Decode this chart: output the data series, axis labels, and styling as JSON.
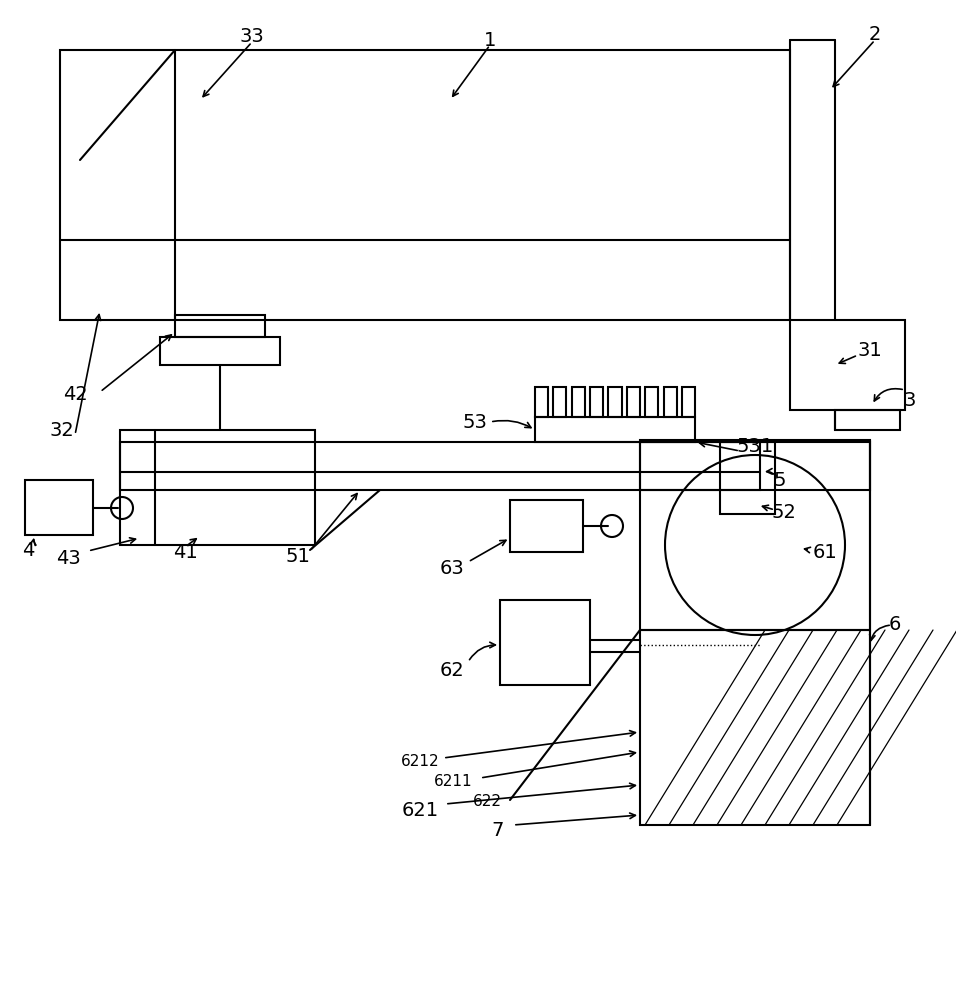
{
  "bg_color": "#ffffff",
  "lc": "#000000",
  "lw": 1.5,
  "fig_w": 9.56,
  "fig_h": 10.0
}
